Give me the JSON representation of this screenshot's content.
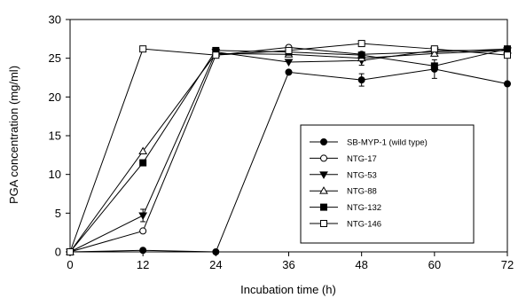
{
  "chart_data": {
    "type": "line",
    "xlabel": "Incubation time (h)",
    "ylabel": "PGA concentration (mg/ml)",
    "x": [
      0,
      12,
      24,
      36,
      48,
      60,
      72
    ],
    "xlim": [
      0,
      72
    ],
    "ylim": [
      0,
      30
    ],
    "xticks": [
      0,
      12,
      24,
      36,
      48,
      60,
      72
    ],
    "yticks": [
      0,
      5,
      10,
      15,
      20,
      25,
      30
    ],
    "legend_position": "center-right",
    "grid": false,
    "series": [
      {
        "name": "SB-MYP-1 (wild type)",
        "marker": "filled-circle",
        "values": [
          0,
          0.2,
          0,
          23.2,
          22.2,
          23.6,
          21.7
        ],
        "errors": [
          0,
          0,
          0,
          0,
          0.8,
          1.2,
          0
        ]
      },
      {
        "name": "NTG-17",
        "marker": "open-circle",
        "values": [
          0,
          2.7,
          25.4,
          26.4,
          25.5,
          25.8,
          26.2
        ],
        "errors": [
          0,
          0,
          0,
          0,
          0,
          0,
          0
        ]
      },
      {
        "name": "NTG-53",
        "marker": "filled-triangle-down",
        "values": [
          0,
          4.7,
          25.8,
          24.5,
          24.7,
          26.0,
          26.0
        ],
        "errors": [
          0,
          0.8,
          0,
          0,
          0.6,
          0,
          0
        ]
      },
      {
        "name": "NTG-88",
        "marker": "open-triangle-up",
        "values": [
          0,
          13.0,
          25.6,
          25.5,
          25.0,
          25.6,
          26.0
        ],
        "errors": [
          0,
          0,
          0,
          0,
          0,
          0,
          0
        ]
      },
      {
        "name": "NTG-132",
        "marker": "filled-square",
        "values": [
          0,
          11.5,
          26.0,
          25.8,
          25.4,
          24.0,
          26.2
        ],
        "errors": [
          0,
          0,
          0,
          0,
          0,
          0,
          0
        ]
      },
      {
        "name": "NTG-146",
        "marker": "open-square",
        "values": [
          0,
          26.2,
          25.4,
          26.0,
          26.9,
          26.2,
          25.4
        ],
        "errors": [
          0,
          0,
          0,
          0,
          0,
          0,
          0
        ]
      }
    ]
  }
}
